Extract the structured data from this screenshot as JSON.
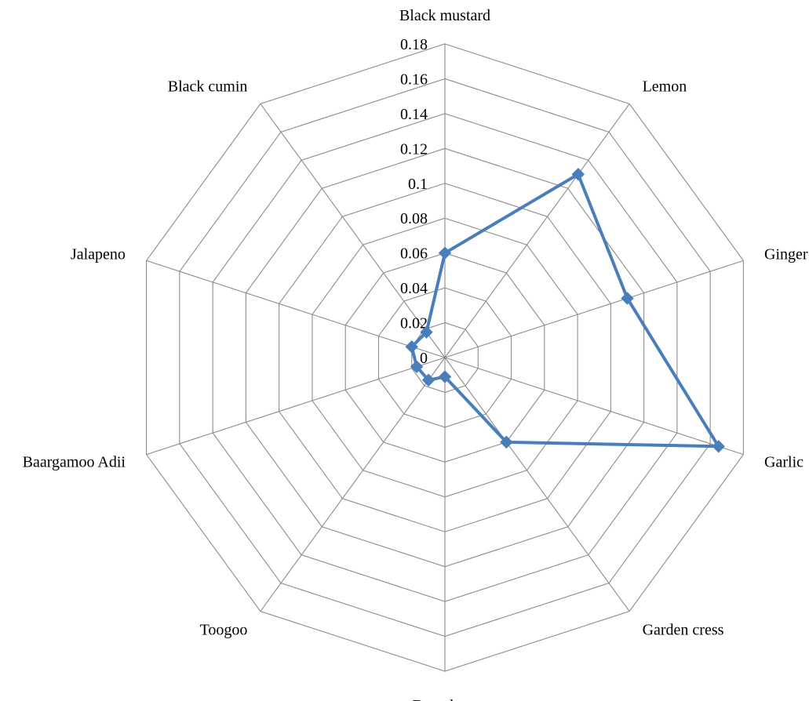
{
  "chart_data": {
    "type": "radar",
    "title": "",
    "categories": [
      "Black mustard",
      "Lemon",
      "Ginger",
      "Garlic",
      "Garden cress",
      "Damakase",
      "Toogoo",
      "Baargamoo Adii",
      "Jalapeno",
      "Black cumin"
    ],
    "series": [
      {
        "values": [
          0.06,
          0.13,
          0.11,
          0.165,
          0.06,
          0.011,
          0.016,
          0.017,
          0.02,
          0.018
        ],
        "color": "#4A7EBB",
        "marker": "diamond"
      }
    ],
    "rlim": [
      0,
      0.18
    ],
    "ticks": [
      "0",
      "0.02",
      "0.04",
      "0.06",
      "0.08",
      "0.1",
      "0.12",
      "0.14",
      "0.16",
      "0.18"
    ],
    "grid": true,
    "legend": "none"
  }
}
